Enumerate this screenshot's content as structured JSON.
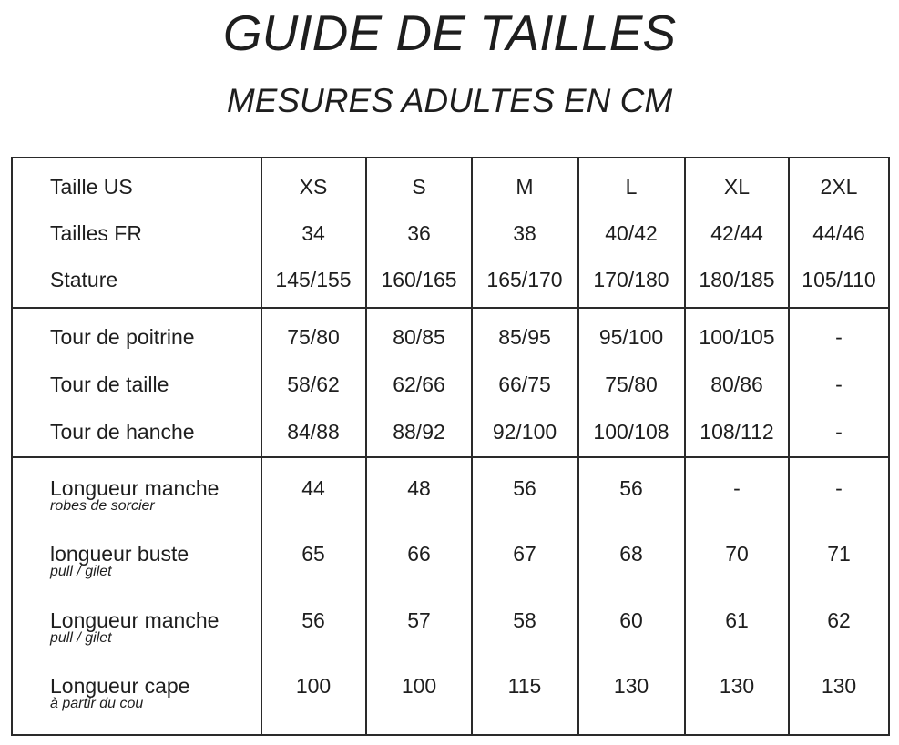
{
  "header": {
    "title": "GUIDE DE TAILLES",
    "subtitle": "MESURES ADULTES EN CM"
  },
  "table": {
    "columns": [
      "XS",
      "S",
      "M",
      "L",
      "XL",
      "2XL"
    ],
    "sections": [
      {
        "rows": [
          {
            "label": "Taille US",
            "values": [
              "XS",
              "S",
              "M",
              "L",
              "XL",
              "2XL"
            ]
          },
          {
            "label": "Tailles FR",
            "values": [
              "34",
              "36",
              "38",
              "40/42",
              "42/44",
              "44/46"
            ]
          },
          {
            "label": "Stature",
            "values": [
              "145/155",
              "160/165",
              "165/170",
              "170/180",
              "180/185",
              "105/110"
            ]
          }
        ]
      },
      {
        "rows": [
          {
            "label": "Tour de poitrine",
            "values": [
              "75/80",
              "80/85",
              "85/95",
              "95/100",
              "100/105",
              "-"
            ]
          },
          {
            "label": "Tour de taille",
            "values": [
              "58/62",
              "62/66",
              "66/75",
              "75/80",
              "80/86",
              "-"
            ]
          },
          {
            "label": "Tour de hanche",
            "values": [
              "84/88",
              "88/92",
              "92/100",
              "100/108",
              "108/112",
              "-"
            ]
          }
        ]
      },
      {
        "rows": [
          {
            "label": "Longueur manche",
            "note": "robes de sorcier",
            "values": [
              "44",
              "48",
              "56",
              "56",
              "-",
              "-"
            ]
          },
          {
            "label": "longueur buste",
            "note": "pull / gilet",
            "values": [
              "65",
              "66",
              "67",
              "68",
              "70",
              "71"
            ]
          },
          {
            "label": "Longueur manche",
            "note": "pull / gilet",
            "values": [
              "56",
              "57",
              "58",
              "60",
              "61",
              "62"
            ]
          },
          {
            "label": "Longueur cape",
            "note": "à partir du cou",
            "values": [
              "100",
              "100",
              "115",
              "130",
              "130",
              "130"
            ]
          }
        ]
      }
    ]
  }
}
